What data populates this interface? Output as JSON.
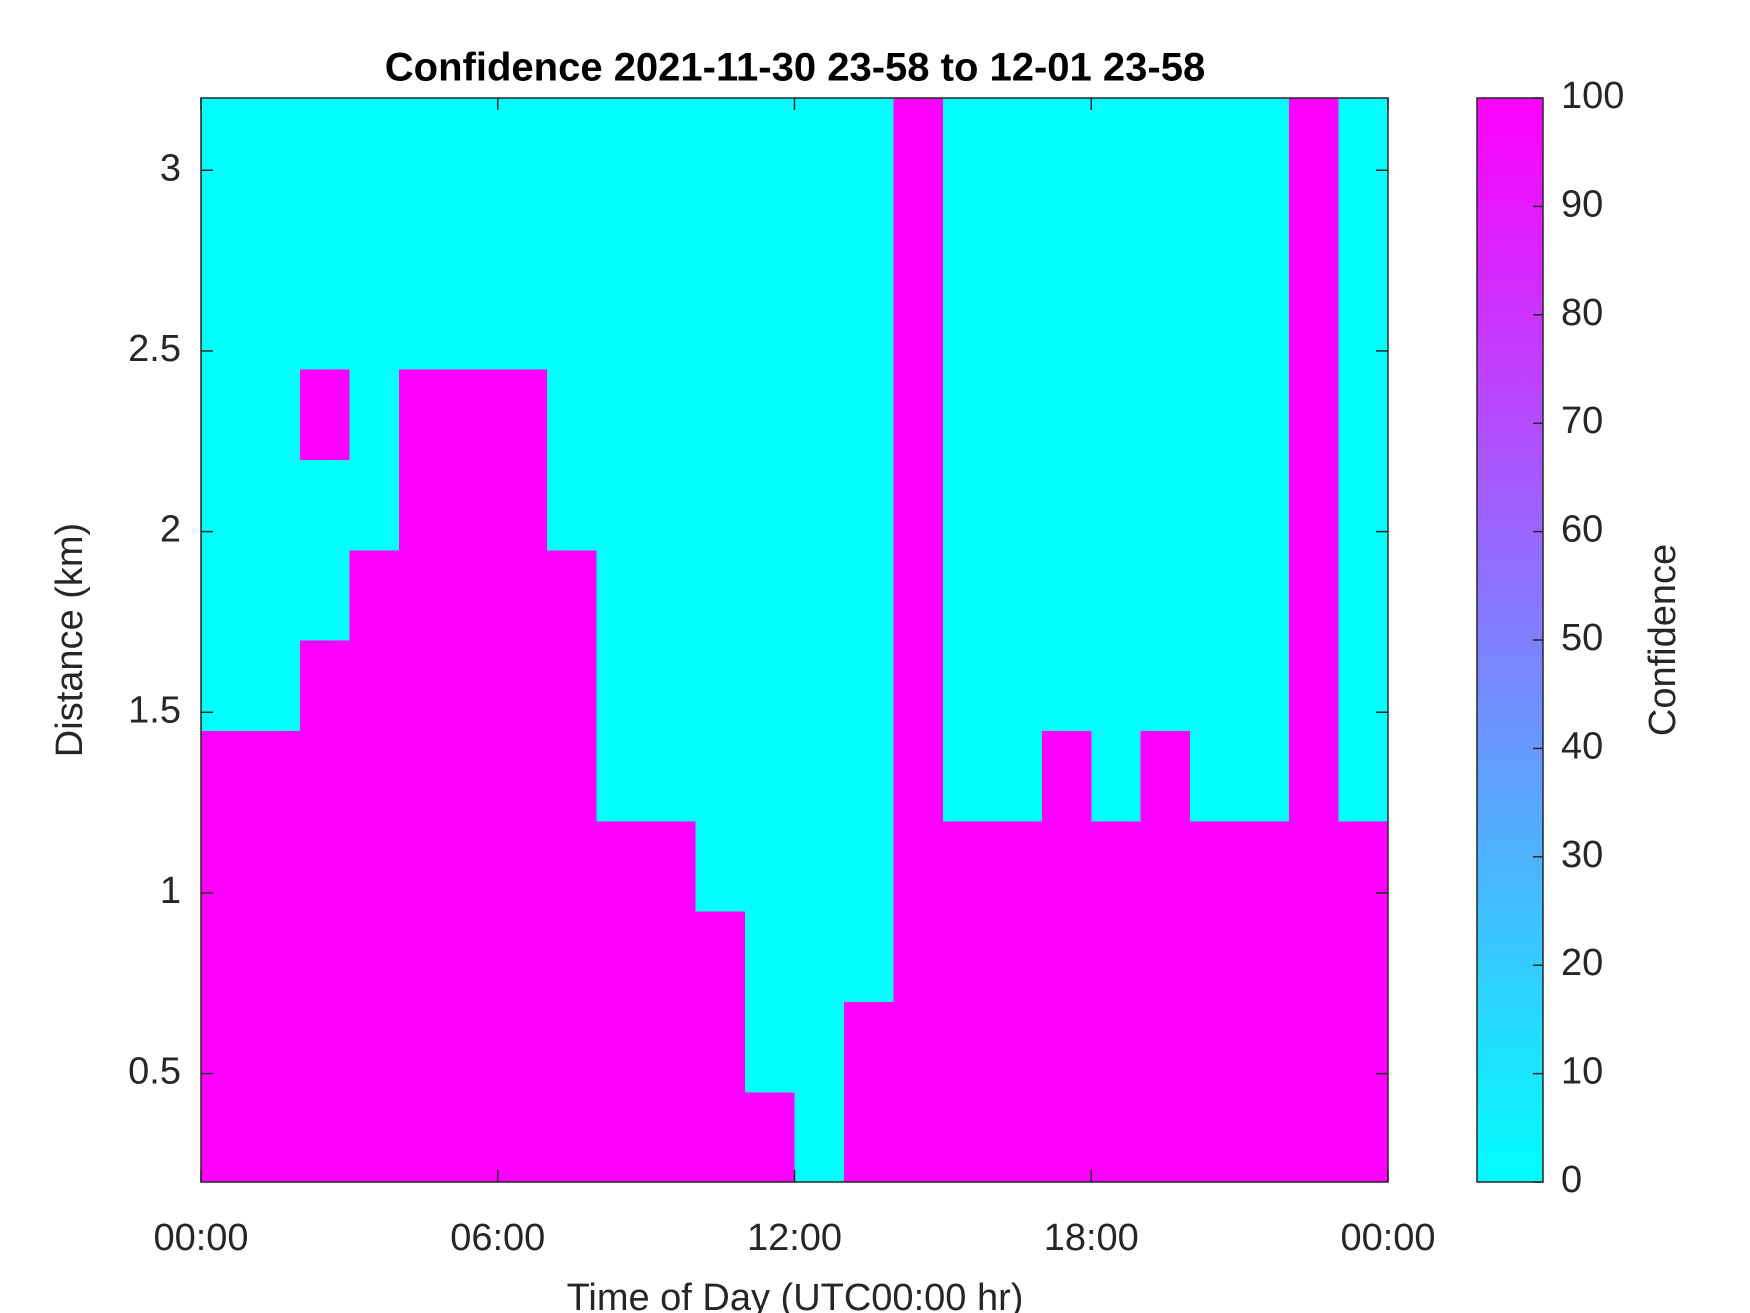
{
  "chart_data": {
    "type": "heatmap",
    "title": "Confidence 2021-11-30 23-58 to 12-01 23-58",
    "x_label": "Time of Day (UTC00:00 hr)",
    "y_label": "Distance (km)",
    "colorbar_label": "Confidence",
    "colormap": [
      "#00ffff",
      "#ff00ff"
    ],
    "x": [
      0,
      1,
      2,
      3,
      4,
      5,
      6,
      7,
      8,
      9,
      10,
      11,
      12,
      13,
      14,
      15,
      16,
      17,
      18,
      19,
      20,
      21,
      22,
      23,
      24
    ],
    "y": [
      0.2,
      0.45,
      0.7,
      0.95,
      1.2,
      1.45,
      1.7,
      1.95,
      2.2,
      2.45,
      2.7,
      2.95,
      3.2
    ],
    "z": [
      [
        100,
        100,
        100,
        100,
        100,
        100,
        100,
        100,
        100,
        100,
        100,
        100,
        0,
        100,
        100,
        100,
        100,
        100,
        100,
        100,
        100,
        100,
        100,
        100
      ],
      [
        100,
        100,
        100,
        100,
        100,
        100,
        100,
        100,
        100,
        100,
        100,
        0,
        0,
        100,
        100,
        100,
        100,
        100,
        100,
        100,
        100,
        100,
        100,
        100
      ],
      [
        100,
        100,
        100,
        100,
        100,
        100,
        100,
        100,
        100,
        100,
        100,
        0,
        0,
        0,
        100,
        100,
        100,
        100,
        100,
        100,
        100,
        100,
        100,
        100
      ],
      [
        100,
        100,
        100,
        100,
        100,
        100,
        100,
        100,
        100,
        100,
        0,
        0,
        0,
        0,
        100,
        100,
        100,
        100,
        100,
        100,
        100,
        100,
        100,
        100
      ],
      [
        100,
        100,
        100,
        100,
        100,
        100,
        100,
        100,
        0,
        0,
        0,
        0,
        0,
        0,
        100,
        0,
        0,
        100,
        0,
        100,
        0,
        0,
        100,
        0
      ],
      [
        0,
        0,
        100,
        100,
        100,
        100,
        100,
        100,
        0,
        0,
        0,
        0,
        0,
        0,
        100,
        0,
        0,
        0,
        0,
        0,
        0,
        0,
        100,
        0
      ],
      [
        0,
        0,
        0,
        100,
        100,
        100,
        100,
        100,
        0,
        0,
        0,
        0,
        0,
        0,
        100,
        0,
        0,
        0,
        0,
        0,
        0,
        0,
        100,
        0
      ],
      [
        0,
        0,
        0,
        0,
        100,
        100,
        100,
        0,
        0,
        0,
        0,
        0,
        0,
        0,
        100,
        0,
        0,
        0,
        0,
        0,
        0,
        0,
        100,
        0
      ],
      [
        0,
        0,
        100,
        0,
        100,
        100,
        100,
        0,
        0,
        0,
        0,
        0,
        0,
        0,
        100,
        0,
        0,
        0,
        0,
        0,
        0,
        0,
        100,
        0
      ],
      [
        0,
        0,
        0,
        0,
        0,
        0,
        0,
        0,
        0,
        0,
        0,
        0,
        0,
        0,
        100,
        0,
        0,
        0,
        0,
        0,
        0,
        0,
        100,
        0
      ],
      [
        0,
        0,
        0,
        0,
        0,
        0,
        0,
        0,
        0,
        0,
        0,
        0,
        0,
        0,
        100,
        0,
        0,
        0,
        0,
        0,
        0,
        0,
        100,
        0
      ],
      [
        0,
        0,
        0,
        0,
        0,
        0,
        0,
        0,
        0,
        0,
        0,
        0,
        0,
        0,
        100,
        0,
        0,
        0,
        0,
        0,
        0,
        0,
        100,
        0
      ]
    ],
    "xlim": [
      0,
      24
    ],
    "xticks": [
      {
        "value": 0,
        "label": "00:00"
      },
      {
        "value": 6,
        "label": "06:00"
      },
      {
        "value": 12,
        "label": "12:00"
      },
      {
        "value": 18,
        "label": "18:00"
      },
      {
        "value": 24,
        "label": "00:00"
      }
    ],
    "ylim": [
      0.2,
      3.2
    ],
    "yticks": [
      0.5,
      1,
      1.5,
      2,
      2.5,
      3
    ],
    "clim": [
      0,
      100
    ],
    "cticks": [
      0,
      10,
      20,
      30,
      40,
      50,
      60,
      70,
      80,
      90,
      100
    ]
  }
}
